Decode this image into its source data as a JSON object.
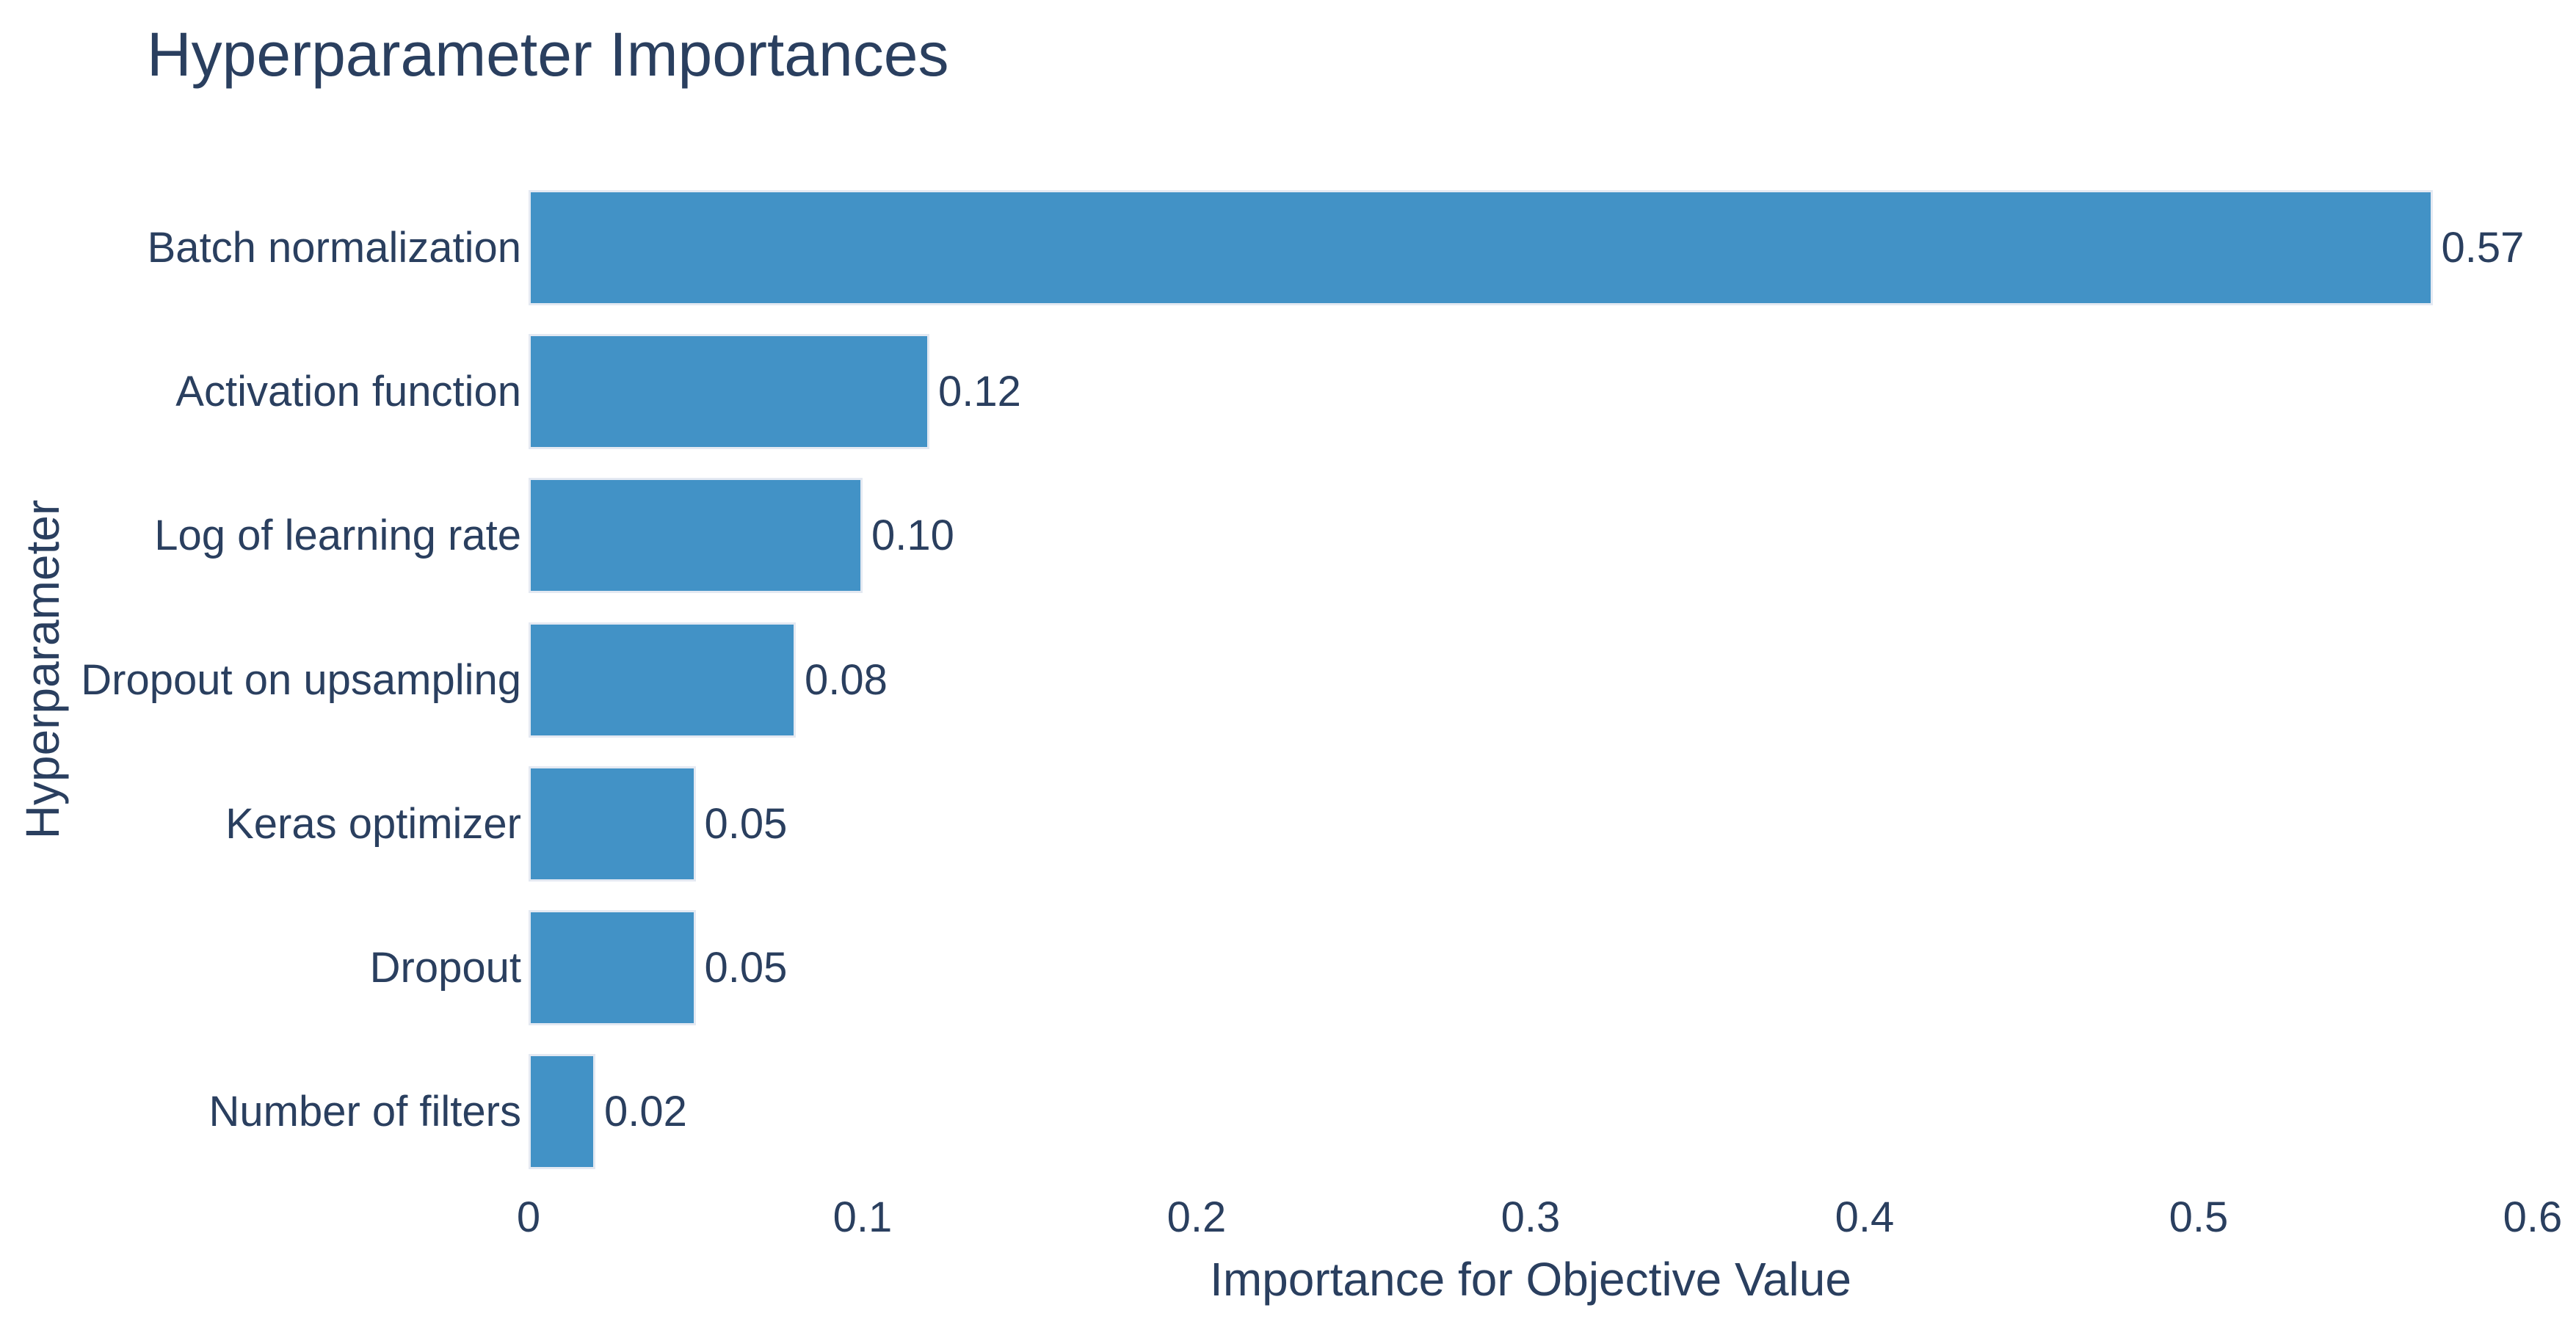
{
  "chart_data": {
    "type": "bar",
    "orientation": "horizontal",
    "title": "Hyperparameter Importances",
    "xlabel": "Importance for Objective Value",
    "ylabel": "Hyperparameter",
    "categories": [
      "Batch normalization",
      "Activation function",
      "Log of learning rate",
      "Dropout on upsampling",
      "Keras optimizer",
      "Dropout",
      "Number of filters"
    ],
    "values": [
      0.57,
      0.12,
      0.1,
      0.08,
      0.05,
      0.05,
      0.02
    ],
    "value_labels": [
      "0.57",
      "0.12",
      "0.10",
      "0.08",
      "0.05",
      "0.05",
      "0.02"
    ],
    "x_ticks": [
      {
        "value": 0.0,
        "label": "0"
      },
      {
        "value": 0.1,
        "label": "0.1"
      },
      {
        "value": 0.2,
        "label": "0.2"
      },
      {
        "value": 0.3,
        "label": "0.3"
      },
      {
        "value": 0.4,
        "label": "0.4"
      },
      {
        "value": 0.5,
        "label": "0.5"
      },
      {
        "value": 0.6,
        "label": "0.6"
      }
    ],
    "xlim": [
      0,
      0.613
    ],
    "grid": false,
    "legend": null,
    "colors": {
      "bar": "#4292c6",
      "bar_edge": "#e4e9f2",
      "text": "#2a3f5f",
      "background": "#ffffff"
    }
  }
}
